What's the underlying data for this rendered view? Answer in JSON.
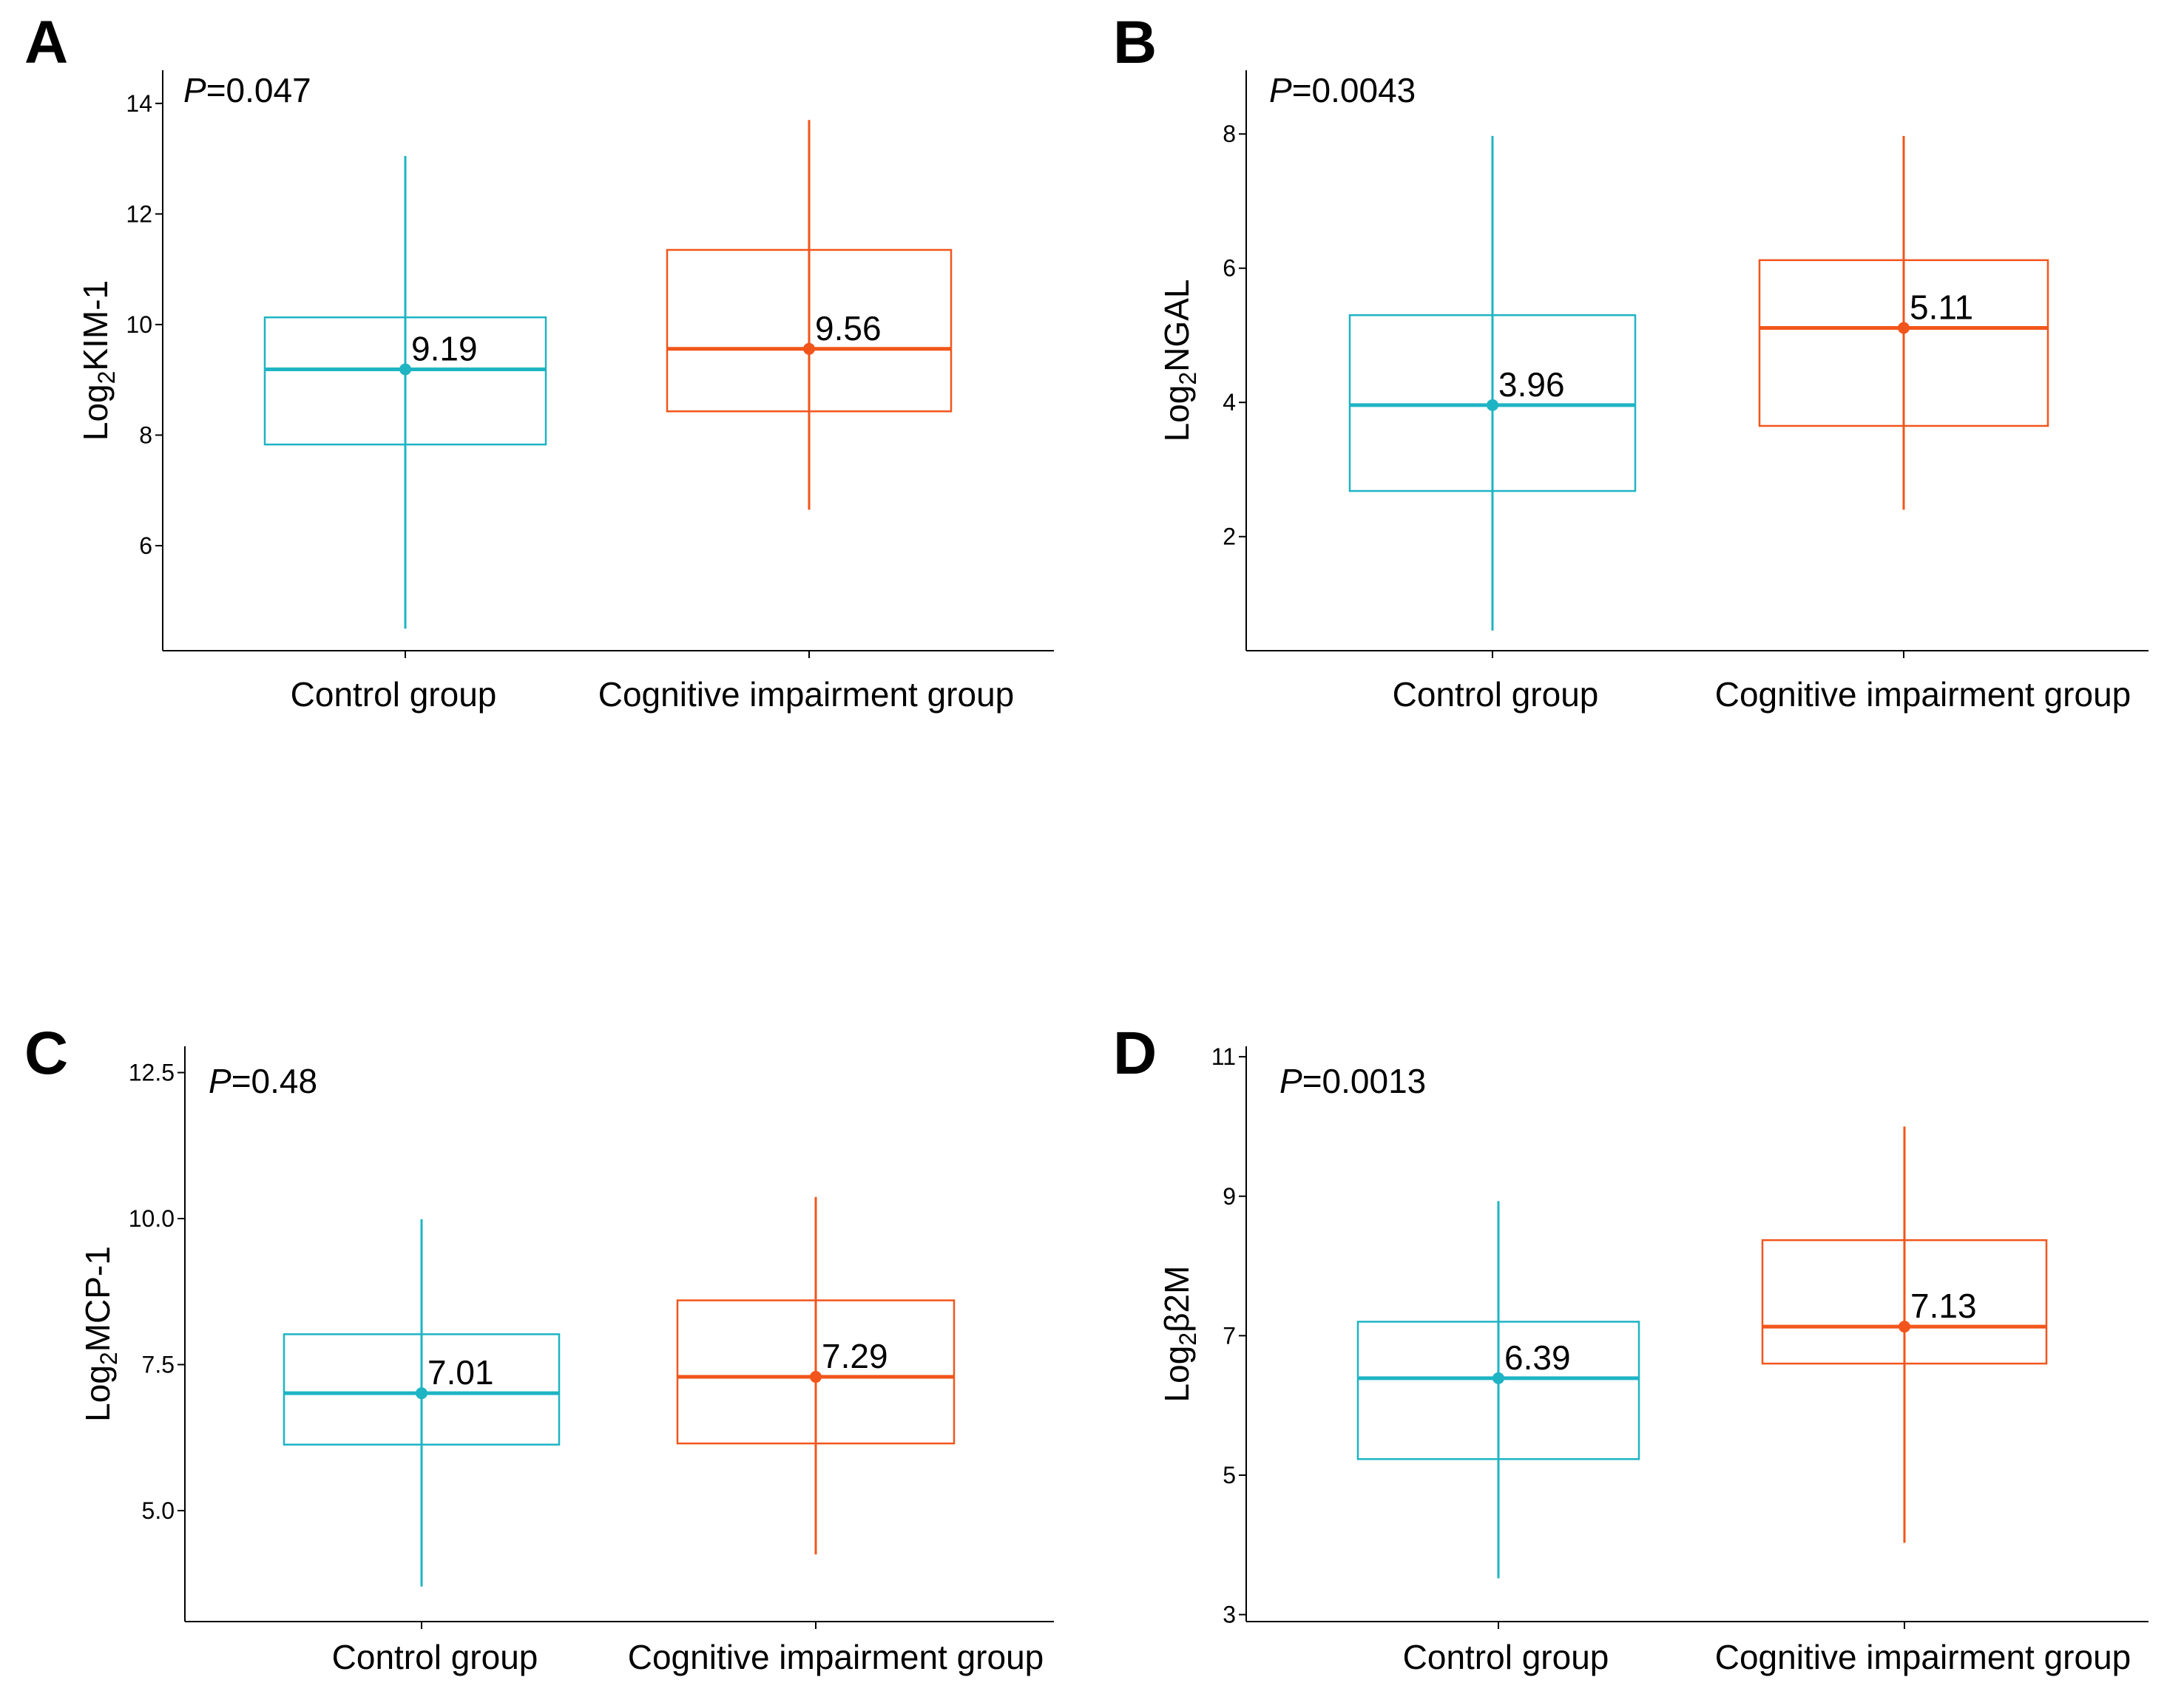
{
  "colors": {
    "control": "#1EB4C4",
    "impairment": "#F2551B",
    "axis": "#000000"
  },
  "chart_data": [
    {
      "type": "box",
      "panel": "A",
      "p_prefix": "P",
      "p_value": "=0.047",
      "ylabel_prefix": "Log",
      "ylabel_sub": "2",
      "ylabel_suffix": "KIM-1",
      "ylim": [
        4.1,
        14.6
      ],
      "yticks": [
        6,
        8,
        10,
        12,
        14
      ],
      "ytick_labels": [
        "6",
        "8",
        "10",
        "12",
        "14"
      ],
      "categories": [
        "Control group",
        "Cognitive impairment group"
      ],
      "groups": [
        {
          "name": "Control group",
          "min": 4.5,
          "q1": 7.83,
          "median": 9.19,
          "q3": 10.13,
          "max": 13.05,
          "mean": 9.19,
          "mean_label": "9.19"
        },
        {
          "name": "Cognitive impairment group",
          "min": 6.65,
          "q1": 8.43,
          "median": 9.56,
          "q3": 11.35,
          "max": 13.7,
          "mean": 9.56,
          "mean_label": "9.56"
        }
      ]
    },
    {
      "type": "box",
      "panel": "B",
      "p_prefix": "P",
      "p_value": "=0.0043",
      "ylabel_prefix": "Log",
      "ylabel_sub": "2",
      "ylabel_suffix": "NGAL",
      "ylim": [
        0.3,
        8.95
      ],
      "yticks": [
        2,
        4,
        6,
        8
      ],
      "ytick_labels": [
        "2",
        "4",
        "6",
        "8"
      ],
      "categories": [
        "Control group",
        "Cognitive impairment group"
      ],
      "groups": [
        {
          "name": "Control group",
          "min": 0.6,
          "q1": 2.68,
          "median": 3.96,
          "q3": 5.3,
          "max": 7.97,
          "mean": 3.96,
          "mean_label": "3.96"
        },
        {
          "name": "Cognitive impairment group",
          "min": 2.4,
          "q1": 3.65,
          "median": 5.11,
          "q3": 6.12,
          "max": 7.97,
          "mean": 5.11,
          "mean_label": "5.11"
        }
      ]
    },
    {
      "type": "box",
      "panel": "C",
      "p_prefix": "P",
      "p_value": "=0.48",
      "ylabel_prefix": "Log",
      "ylabel_sub": "2",
      "ylabel_suffix": "MCP-1",
      "ylim": [
        3.1,
        12.95
      ],
      "yticks": [
        5.0,
        7.5,
        10.0,
        12.5
      ],
      "ytick_labels": [
        "5.0",
        "7.5",
        "10.0",
        "12.5"
      ],
      "categories": [
        "Control group",
        "Cognitive impairment group"
      ],
      "groups": [
        {
          "name": "Control group",
          "min": 3.7,
          "q1": 6.13,
          "median": 7.01,
          "q3": 8.02,
          "max": 9.99,
          "mean": 7.01,
          "mean_label": "7.01"
        },
        {
          "name": "Cognitive impairment group",
          "min": 4.25,
          "q1": 6.15,
          "median": 7.29,
          "q3": 8.6,
          "max": 10.37,
          "mean": 7.29,
          "mean_label": "7.29"
        }
      ]
    },
    {
      "type": "box",
      "panel": "D",
      "p_prefix": "P",
      "p_value": "=0.0013",
      "ylabel_prefix": "Log",
      "ylabel_sub": "2",
      "ylabel_suffix": "β2M",
      "ylim": [
        2.9,
        11.15
      ],
      "yticks": [
        3,
        5,
        7,
        9,
        11
      ],
      "ytick_labels": [
        "3",
        "5",
        "7",
        "9",
        "11"
      ],
      "categories": [
        "Control group",
        "Cognitive impairment group"
      ],
      "groups": [
        {
          "name": "Control group",
          "min": 3.52,
          "q1": 5.23,
          "median": 6.39,
          "q3": 7.2,
          "max": 8.93,
          "mean": 6.39,
          "mean_label": "6.39"
        },
        {
          "name": "Cognitive impairment group",
          "min": 4.03,
          "q1": 6.6,
          "median": 7.13,
          "q3": 8.37,
          "max": 10.0,
          "mean": 7.13,
          "mean_label": "7.13"
        }
      ]
    }
  ]
}
